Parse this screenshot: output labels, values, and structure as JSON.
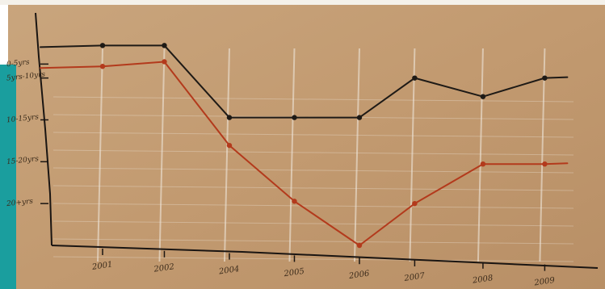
{
  "chart_data": {
    "type": "line",
    "categories": [
      "2001",
      "2002",
      "2004",
      "2005",
      "2006",
      "2007",
      "2008",
      "2009"
    ],
    "ylim": [
      0,
      100
    ],
    "grid": true,
    "yticks": [
      {
        "value": 78,
        "label": "0-5yrs"
      },
      {
        "value": 72,
        "label": "5yrs-10yrs"
      },
      {
        "value": 54,
        "label": "10-15yrs"
      },
      {
        "value": 36,
        "label": "15-20yrs"
      },
      {
        "value": 18,
        "label": "20+yrs"
      }
    ],
    "series": [
      {
        "color": "#1e1a16",
        "values": [
          86,
          86,
          55,
          55,
          55,
          72,
          64,
          72
        ],
        "x": [
          1.0,
          1.95,
          2.95,
          3.95,
          4.95,
          5.8,
          6.85,
          7.8
        ]
      },
      {
        "color": "#b33a1c",
        "values": [
          77,
          79,
          43,
          19,
          0,
          18,
          35,
          35
        ],
        "x": [
          1.0,
          1.95,
          2.95,
          3.95,
          4.95,
          5.8,
          6.85,
          7.8
        ]
      }
    ]
  }
}
